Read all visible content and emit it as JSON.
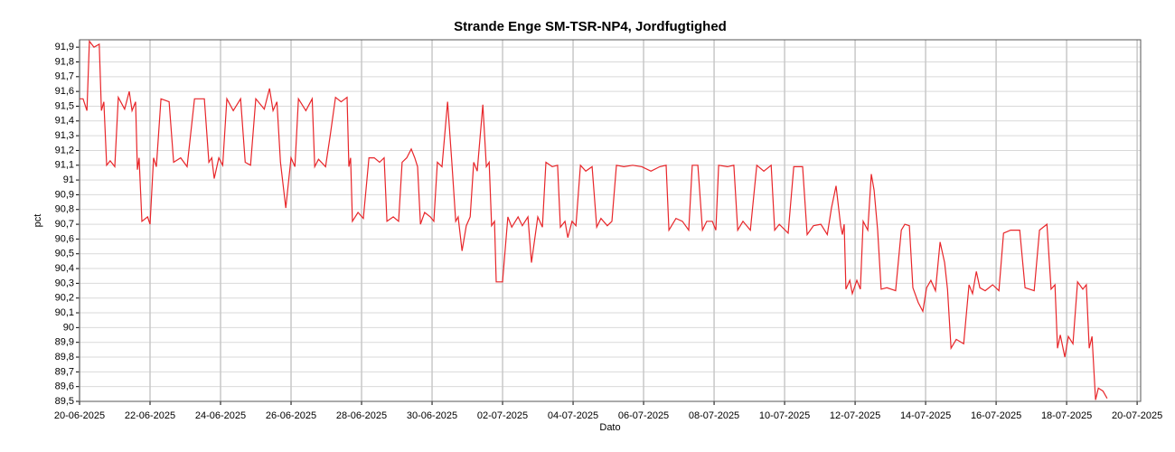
{
  "chart_data": {
    "type": "line",
    "title": "Strande Enge SM-TSR-NP4, Jordfugtighed",
    "x_label": "Dato",
    "y_label": "pct",
    "color": "#e8262a",
    "grid": true,
    "xlim": [
      0,
      30.1
    ],
    "ylim": [
      89.5,
      91.95
    ],
    "xticks": [
      {
        "value": 0,
        "label": "20-06-2025"
      },
      {
        "value": 2,
        "label": "22-06-2025"
      },
      {
        "value": 4,
        "label": "24-06-2025"
      },
      {
        "value": 6,
        "label": "26-06-2025"
      },
      {
        "value": 8,
        "label": "28-06-2025"
      },
      {
        "value": 10,
        "label": "30-06-2025"
      },
      {
        "value": 12,
        "label": "02-07-2025"
      },
      {
        "value": 14,
        "label": "04-07-2025"
      },
      {
        "value": 16,
        "label": "06-07-2025"
      },
      {
        "value": 18,
        "label": "08-07-2025"
      },
      {
        "value": 20,
        "label": "10-07-2025"
      },
      {
        "value": 22,
        "label": "12-07-2025"
      },
      {
        "value": 24,
        "label": "14-07-2025"
      },
      {
        "value": 26,
        "label": "16-07-2025"
      },
      {
        "value": 28,
        "label": "18-07-2025"
      },
      {
        "value": 30,
        "label": "20-07-2025"
      }
    ],
    "yticks": [
      {
        "value": 89.5,
        "label": "89,5"
      },
      {
        "value": 89.6,
        "label": "89,6"
      },
      {
        "value": 89.7,
        "label": "89,7"
      },
      {
        "value": 89.8,
        "label": "89,8"
      },
      {
        "value": 89.9,
        "label": "89,9"
      },
      90,
      {
        "value": 90.1,
        "label": "90,1"
      },
      {
        "value": 90.2,
        "label": "90,2"
      },
      {
        "value": 90.3,
        "label": "90,3"
      },
      {
        "value": 90.4,
        "label": "90,4"
      },
      {
        "value": 90.5,
        "label": "90,5"
      },
      {
        "value": 90.6,
        "label": "90,6"
      },
      {
        "value": 90.7,
        "label": "90,7"
      },
      {
        "value": 90.8,
        "label": "90,8"
      },
      {
        "value": 90.9,
        "label": "90,9"
      },
      91,
      {
        "value": 91.1,
        "label": "91,1"
      },
      {
        "value": 91.2,
        "label": "91,2"
      },
      {
        "value": 91.3,
        "label": "91,3"
      },
      {
        "value": 91.4,
        "label": "91,4"
      },
      {
        "value": 91.5,
        "label": "91,5"
      },
      {
        "value": 91.6,
        "label": "91,6"
      },
      {
        "value": 91.7,
        "label": "91,7"
      },
      {
        "value": 91.8,
        "label": "91,8"
      },
      {
        "value": 91.9,
        "label": "91,9"
      }
    ],
    "x": [
      0,
      0.1,
      0.21,
      0.28,
      0.41,
      0.56,
      0.62,
      0.69,
      0.77,
      0.87,
      1.0,
      1.1,
      1.28,
      1.41,
      1.49,
      1.59,
      1.64,
      1.69,
      1.77,
      1.93,
      2.0,
      2.1,
      2.18,
      2.31,
      2.54,
      2.67,
      2.87,
      3.05,
      3.26,
      3.54,
      3.67,
      3.75,
      3.82,
      3.95,
      4.06,
      4.18,
      4.36,
      4.57,
      4.7,
      4.85,
      5.0,
      5.24,
      5.39,
      5.49,
      5.6,
      5.7,
      5.85,
      6.0,
      6.11,
      6.21,
      6.42,
      6.6,
      6.67,
      6.78,
      6.98,
      7.11,
      7.26,
      7.42,
      7.59,
      7.64,
      7.69,
      7.74,
      7.9,
      8.05,
      8.21,
      8.36,
      8.51,
      8.64,
      8.72,
      8.9,
      9.05,
      9.15,
      9.28,
      9.41,
      9.51,
      9.59,
      9.67,
      9.79,
      9.95,
      10.05,
      10.15,
      10.28,
      10.44,
      10.56,
      10.67,
      10.74,
      10.85,
      10.97,
      11.08,
      11.18,
      11.28,
      11.44,
      11.54,
      11.62,
      11.69,
      11.77,
      11.82,
      12.0,
      12.15,
      12.26,
      12.44,
      12.56,
      12.72,
      12.82,
      13.0,
      13.13,
      13.23,
      13.41,
      13.56,
      13.64,
      13.77,
      13.85,
      13.97,
      14.08,
      14.21,
      14.36,
      14.54,
      14.67,
      14.79,
      14.97,
      15.1,
      15.23,
      15.44,
      15.69,
      15.95,
      16.21,
      16.46,
      16.64,
      16.72,
      16.92,
      17.1,
      17.28,
      17.38,
      17.54,
      17.67,
      17.79,
      17.95,
      18.05,
      18.13,
      18.38,
      18.56,
      18.67,
      18.82,
      19.03,
      19.21,
      19.41,
      19.62,
      19.72,
      19.85,
      20.1,
      20.26,
      20.51,
      20.64,
      20.82,
      21.03,
      21.21,
      21.33,
      21.46,
      21.59,
      21.64,
      21.69,
      21.74,
      21.85,
      21.92,
      22.05,
      22.15,
      22.23,
      22.36,
      22.46,
      22.54,
      22.64,
      22.74,
      22.9,
      23.15,
      23.31,
      23.41,
      23.54,
      23.64,
      23.79,
      23.92,
      24.03,
      24.15,
      24.28,
      24.41,
      24.54,
      24.62,
      24.72,
      24.87,
      25.08,
      25.23,
      25.33,
      25.44,
      25.54,
      25.69,
      25.9,
      26.08,
      26.21,
      26.41,
      26.67,
      26.82,
      27.08,
      27.23,
      27.44,
      27.56,
      27.67,
      27.74,
      27.82,
      27.95,
      28.05,
      28.18,
      28.31,
      28.46,
      28.56,
      28.64,
      28.72,
      28.82,
      28.9,
      29.03,
      29.15
    ],
    "values": [
      91.55,
      91.55,
      91.47,
      91.94,
      91.9,
      91.92,
      91.47,
      91.53,
      91.1,
      91.13,
      91.09,
      91.56,
      91.48,
      91.6,
      91.47,
      91.53,
      91.07,
      91.15,
      90.72,
      90.75,
      90.7,
      91.15,
      91.09,
      91.55,
      91.53,
      91.12,
      91.15,
      91.09,
      91.55,
      91.55,
      91.12,
      91.15,
      91.01,
      91.15,
      91.1,
      91.55,
      91.47,
      91.55,
      91.12,
      91.1,
      91.55,
      91.48,
      91.62,
      91.47,
      91.53,
      91.12,
      90.81,
      91.15,
      91.09,
      91.55,
      91.47,
      91.55,
      91.09,
      91.14,
      91.09,
      91.3,
      91.56,
      91.53,
      91.56,
      91.09,
      91.15,
      90.72,
      90.78,
      90.74,
      91.15,
      91.15,
      91.12,
      91.15,
      90.72,
      90.75,
      90.72,
      91.12,
      91.15,
      91.21,
      91.15,
      91.09,
      90.7,
      90.78,
      90.75,
      90.72,
      91.12,
      91.09,
      91.53,
      91.12,
      90.72,
      90.75,
      90.52,
      90.69,
      90.75,
      91.12,
      91.06,
      91.51,
      91.09,
      91.12,
      90.69,
      90.72,
      90.31,
      90.31,
      90.75,
      90.68,
      90.75,
      90.69,
      90.75,
      90.44,
      90.75,
      90.68,
      91.12,
      91.09,
      91.1,
      90.68,
      90.72,
      90.61,
      90.72,
      90.69,
      91.1,
      91.06,
      91.09,
      90.68,
      90.74,
      90.69,
      90.72,
      91.1,
      91.09,
      91.1,
      91.09,
      91.06,
      91.09,
      91.1,
      90.66,
      90.74,
      90.72,
      90.66,
      91.1,
      91.1,
      90.66,
      90.72,
      90.72,
      90.66,
      91.1,
      91.09,
      91.1,
      90.66,
      90.72,
      90.66,
      91.1,
      91.06,
      91.1,
      90.66,
      90.7,
      90.64,
      91.09,
      91.09,
      90.63,
      90.69,
      90.7,
      90.63,
      90.81,
      90.96,
      90.69,
      90.63,
      90.7,
      90.26,
      90.32,
      90.23,
      90.32,
      90.26,
      90.72,
      90.66,
      91.04,
      90.93,
      90.66,
      90.26,
      90.27,
      90.25,
      90.66,
      90.7,
      90.69,
      90.27,
      90.17,
      90.11,
      90.27,
      90.32,
      90.25,
      90.58,
      90.44,
      90.26,
      89.86,
      89.92,
      89.89,
      90.29,
      90.23,
      90.38,
      90.27,
      90.25,
      90.29,
      90.25,
      90.64,
      90.66,
      90.66,
      90.27,
      90.25,
      90.66,
      90.7,
      90.26,
      90.29,
      89.86,
      89.95,
      89.8,
      89.94,
      89.89,
      90.31,
      90.26,
      90.29,
      89.86,
      89.94,
      89.51,
      89.59,
      89.57,
      89.52
    ]
  }
}
